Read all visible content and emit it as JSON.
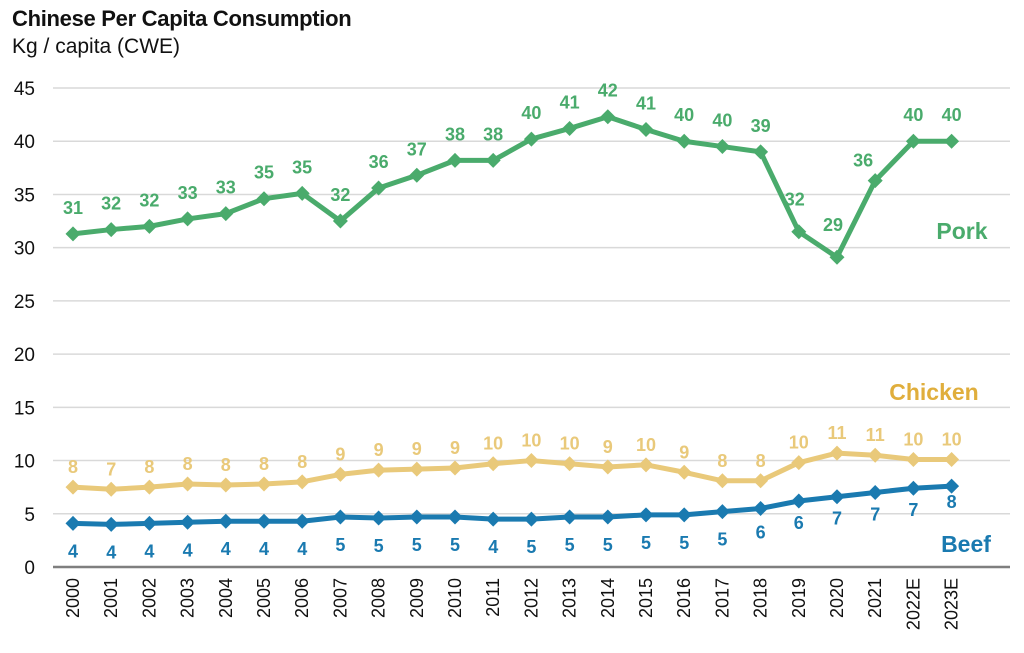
{
  "chart_data": {
    "type": "line",
    "title": "Chinese Per Capita Consumption",
    "subtitle": "Kg / capita (CWE)",
    "xlabel": "",
    "ylabel": "Kg / capita (CWE)",
    "ylim": [
      0,
      45
    ],
    "yticks": [
      0,
      5,
      10,
      15,
      20,
      25,
      30,
      35,
      40,
      45
    ],
    "grid": true,
    "legend": "inline labels at right end of each series",
    "categories": [
      "2000",
      "2001",
      "2002",
      "2003",
      "2004",
      "2005",
      "2006",
      "2007",
      "2008",
      "2009",
      "2010",
      "2011",
      "2012",
      "2013",
      "2014",
      "2015",
      "2016",
      "2017",
      "2018",
      "2019",
      "2020",
      "2021",
      "2022E",
      "2023E"
    ],
    "series": [
      {
        "name": "Pork",
        "color": "#4aab6c",
        "values": [
          31.3,
          31.7,
          32.0,
          32.7,
          33.2,
          34.6,
          35.1,
          32.5,
          35.6,
          36.8,
          38.2,
          38.2,
          40.2,
          41.2,
          42.3,
          41.1,
          40.0,
          39.5,
          39.0,
          31.5,
          29.1,
          36.3,
          40.0,
          40.0
        ],
        "labels": [
          "31",
          "32",
          "32",
          "33",
          "33",
          "35",
          "35",
          "32",
          "36",
          "37",
          "38",
          "38",
          "40",
          "41",
          "42",
          "41",
          "40",
          "40",
          "39",
          "32",
          "29",
          "36",
          "40",
          "40"
        ]
      },
      {
        "name": "Chicken",
        "color": "#e9c97a",
        "name_color": "#e0ae3c",
        "values": [
          7.5,
          7.3,
          7.5,
          7.8,
          7.7,
          7.8,
          8.0,
          8.7,
          9.1,
          9.2,
          9.3,
          9.7,
          10.0,
          9.7,
          9.4,
          9.6,
          8.9,
          8.1,
          8.1,
          9.8,
          10.7,
          10.5,
          10.1,
          10.1
        ],
        "labels": [
          "8",
          "7",
          "8",
          "8",
          "8",
          "8",
          "8",
          "9",
          "9",
          "9",
          "9",
          "10",
          "10",
          "10",
          "9",
          "10",
          "9",
          "8",
          "8",
          "10",
          "11",
          "11",
          "10",
          "10"
        ]
      },
      {
        "name": "Beef",
        "color": "#1a7ab0",
        "values": [
          4.1,
          4.0,
          4.1,
          4.2,
          4.3,
          4.3,
          4.3,
          4.7,
          4.6,
          4.7,
          4.7,
          4.5,
          4.5,
          4.7,
          4.7,
          4.9,
          4.9,
          5.2,
          5.5,
          6.2,
          6.6,
          7.0,
          7.4,
          7.6
        ],
        "labels": [
          "4",
          "4",
          "4",
          "4",
          "4",
          "4",
          "4",
          "5",
          "5",
          "5",
          "5",
          "4",
          "5",
          "5",
          "5",
          "5",
          "5",
          "5",
          "6",
          "6",
          "7",
          "7",
          "7",
          "8"
        ]
      }
    ]
  }
}
